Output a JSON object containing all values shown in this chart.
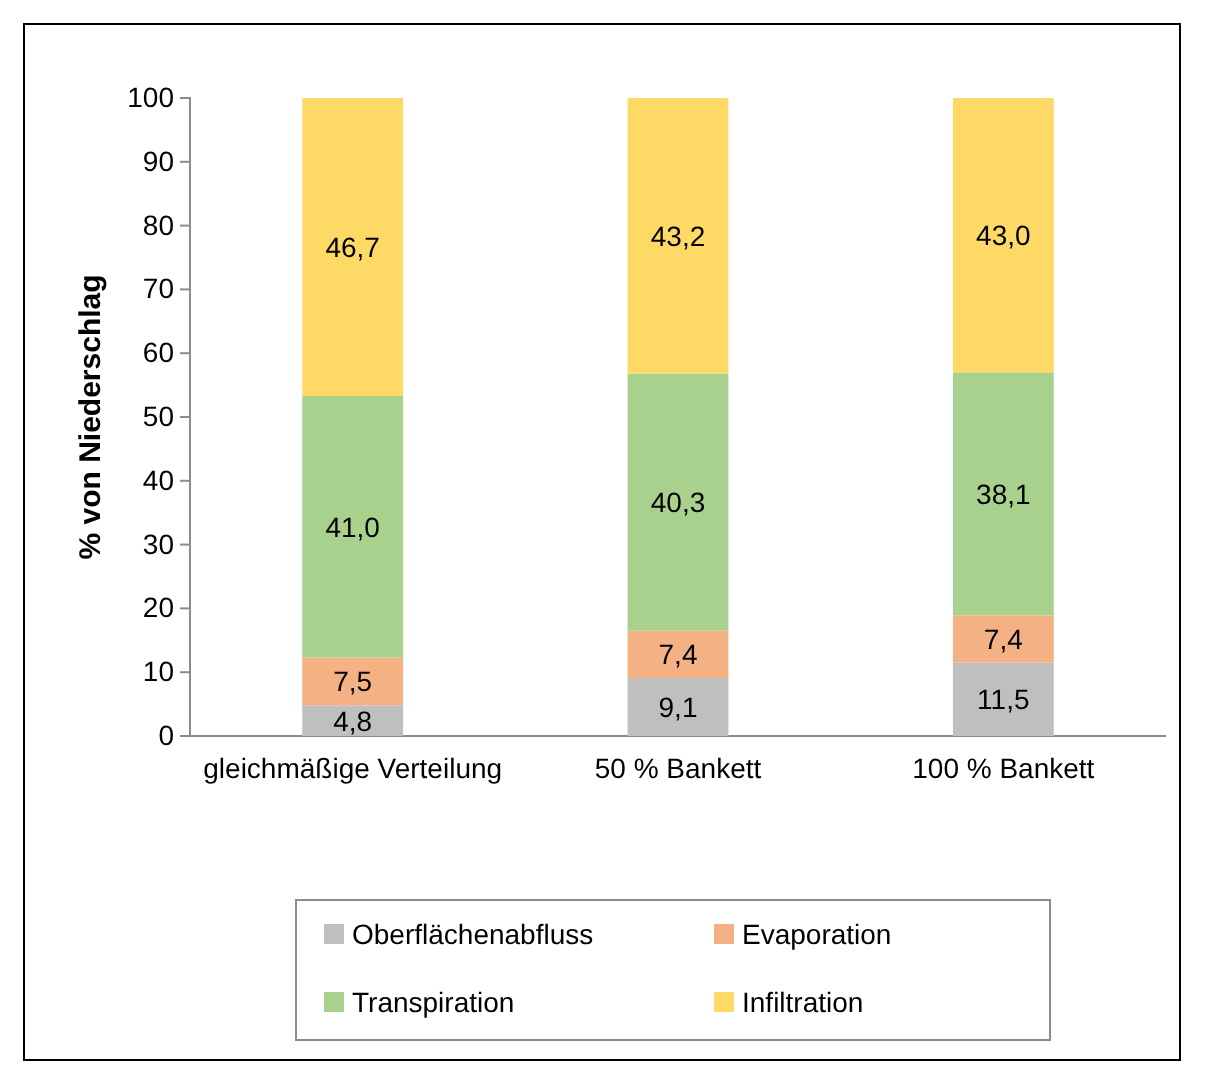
{
  "chart_data": {
    "type": "bar",
    "stacked": true,
    "ylabel": "% von Niederschlag",
    "categories": [
      "gleichmäßige Verteilung",
      "50 % Bankett",
      "100 % Bankett"
    ],
    "series": [
      {
        "name": "Oberflächenabfluss",
        "color": "#bfbfbf",
        "values": [
          4.8,
          9.1,
          11.5
        ],
        "value_labels": [
          "4,8",
          "9,1",
          "11,5"
        ]
      },
      {
        "name": "Evaporation",
        "color": "#f4b183",
        "values": [
          7.5,
          7.4,
          7.4
        ],
        "value_labels": [
          "7,5",
          "7,4",
          "7,4"
        ]
      },
      {
        "name": "Transpiration",
        "color": "#a9d18e",
        "values": [
          41.0,
          40.3,
          38.1
        ],
        "value_labels": [
          "41,0",
          "40,3",
          "38,1"
        ]
      },
      {
        "name": "Infiltration",
        "color": "#ffd966",
        "values": [
          46.7,
          43.2,
          43.0
        ],
        "value_labels": [
          "46,7",
          "43,2",
          "43,0"
        ]
      }
    ],
    "ylim": [
      0,
      100
    ],
    "yticks": [
      0,
      10,
      20,
      30,
      40,
      50,
      60,
      70,
      80,
      90,
      100
    ],
    "grid": false,
    "legend": "bottom"
  }
}
